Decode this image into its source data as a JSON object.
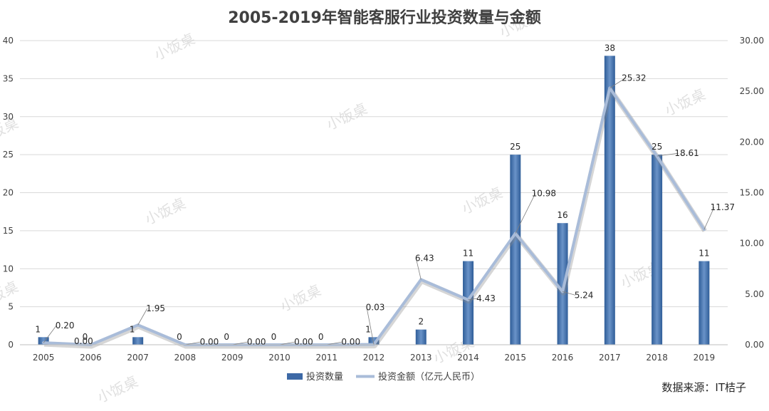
{
  "chart_data": {
    "type": "bar+line",
    "title": "2005-2019年智能客服行业投资数量与金额",
    "categories": [
      "2005",
      "2006",
      "2007",
      "2008",
      "2009",
      "2010",
      "2011",
      "2012",
      "2013",
      "2014",
      "2015",
      "2016",
      "2017",
      "2018",
      "2019"
    ],
    "series": [
      {
        "name": "投资数量",
        "type": "bar",
        "axis": "left",
        "color": "#4a75b0",
        "values": [
          1,
          0,
          1,
          0,
          0,
          0,
          0,
          1,
          2,
          11,
          25,
          16,
          38,
          25,
          11
        ]
      },
      {
        "name": "投资金额（亿元人民币）",
        "type": "line",
        "axis": "right",
        "color": "#a9bcd9",
        "values": [
          0.2,
          0.0,
          1.95,
          0.0,
          0.0,
          0.0,
          0.0,
          0.03,
          6.43,
          4.43,
          10.98,
          5.24,
          25.32,
          18.61,
          11.37
        ],
        "labels": [
          "0.20",
          "0.00",
          "1.95",
          "0.00",
          "0.00",
          "0.00",
          "0.00",
          "0.03",
          "6.43",
          "4.43",
          "10.98",
          "5.24",
          "25.32",
          "18.61",
          "11.37"
        ]
      }
    ],
    "ylim_left": [
      0,
      40
    ],
    "yticks_left": [
      "0",
      "5",
      "10",
      "15",
      "20",
      "25",
      "30",
      "35",
      "40"
    ],
    "ylim_right": [
      0,
      30
    ],
    "yticks_right": [
      "0.00",
      "5.00",
      "10.00",
      "15.00",
      "20.00",
      "25.00",
      "30.00"
    ],
    "grid": true,
    "legend_position": "bottom"
  },
  "source_note": "数据来源：IT桔子",
  "watermark_text": "小饭桌"
}
